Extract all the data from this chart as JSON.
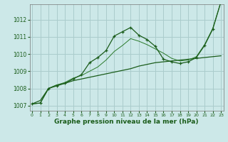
{
  "xlabel": "Graphe pression niveau de la mer (hPa)",
  "background_color": "#cce8e8",
  "grid_color": "#aacccc",
  "line_color_dark": "#1a5c1a",
  "line_color_mid": "#2a7a2a",
  "xlim": [
    -0.3,
    23.3
  ],
  "ylim": [
    1006.7,
    1012.9
  ],
  "xticks": [
    0,
    1,
    2,
    3,
    4,
    5,
    6,
    7,
    8,
    9,
    10,
    11,
    12,
    13,
    14,
    15,
    16,
    17,
    18,
    19,
    20,
    21,
    22,
    23
  ],
  "yticks": [
    1007,
    1008,
    1009,
    1010,
    1011,
    1012
  ],
  "series_straight": [
    1007.1,
    1007.3,
    1008.0,
    1008.2,
    1008.3,
    1008.45,
    1008.55,
    1008.65,
    1008.75,
    1008.85,
    1008.95,
    1009.05,
    1009.15,
    1009.3,
    1009.4,
    1009.5,
    1009.55,
    1009.6,
    1009.65,
    1009.7,
    1009.75,
    1009.8,
    1009.85,
    1009.9
  ],
  "series_marked": [
    1007.1,
    1007.15,
    1008.0,
    1008.15,
    1008.3,
    1008.55,
    1008.8,
    1009.5,
    1009.8,
    1010.2,
    1011.05,
    1011.3,
    1011.55,
    1011.1,
    1010.85,
    1010.45,
    1009.7,
    1009.55,
    1009.45,
    1009.55,
    1009.8,
    1010.5,
    1011.45,
    1013.05
  ],
  "series_thin": [
    1007.1,
    1007.15,
    1008.0,
    1008.2,
    1008.35,
    1008.6,
    1008.75,
    1009.0,
    1009.25,
    1009.65,
    1010.15,
    1010.5,
    1010.9,
    1010.75,
    1010.55,
    1010.3,
    1010.05,
    1009.75,
    1009.6,
    1009.65,
    1009.85,
    1010.55,
    1011.5,
    1013.05
  ]
}
